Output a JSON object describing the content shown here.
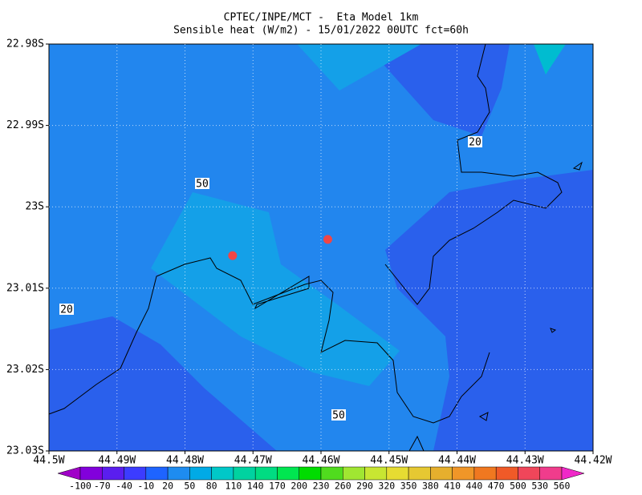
{
  "chart_data": {
    "type": "contour-map",
    "title": "CPTEC/INPE/MCT -  Eta Model 1km",
    "subtitle": "Sensible heat (W/m2) - 15/01/2022 00UTC fct=60h",
    "xlim": [
      -44.5,
      -44.42
    ],
    "xticks": [
      {
        "value": -44.5,
        "label": "44.5W"
      },
      {
        "value": -44.49,
        "label": "44.49W"
      },
      {
        "value": -44.48,
        "label": "44.48W"
      },
      {
        "value": -44.47,
        "label": "44.47W"
      },
      {
        "value": -44.46,
        "label": "44.46W"
      },
      {
        "value": -44.45,
        "label": "44.45W"
      },
      {
        "value": -44.44,
        "label": "44.44W"
      },
      {
        "value": -44.43,
        "label": "44.43W"
      },
      {
        "value": -44.42,
        "label": "44.42W"
      }
    ],
    "ylim": [
      -23.03,
      -22.98
    ],
    "yticks": [
      {
        "value": -22.98,
        "label": "22.98S"
      },
      {
        "value": -22.99,
        "label": "22.99S"
      },
      {
        "value": -23,
        "label": "23S"
      },
      {
        "value": -23.01,
        "label": "23.01S"
      },
      {
        "value": -23.02,
        "label": "23.02S"
      },
      {
        "value": -23.03,
        "label": "23.03S"
      }
    ],
    "grid": true,
    "colorbar": {
      "levels": [
        -100,
        -70,
        -40,
        -10,
        20,
        50,
        80,
        110,
        140,
        170,
        200,
        230,
        260,
        290,
        320,
        350,
        380,
        410,
        440,
        470,
        500,
        530,
        560
      ],
      "colors": [
        "#a000c8",
        "#8200dc",
        "#5a1eef",
        "#3c3cff",
        "#1e64ff",
        "#1e8cf0",
        "#00aae6",
        "#00c8c8",
        "#00d2a0",
        "#00dc82",
        "#00e650",
        "#00dc00",
        "#50dc1e",
        "#a0e632",
        "#c8e632",
        "#e6dc32",
        "#e6c832",
        "#e6af2d",
        "#f09628",
        "#f07820",
        "#f05a28",
        "#f0465a",
        "#f03c8c",
        "#f028c8"
      ]
    },
    "contour_labels": [
      50,
      20,
      20,
      50
    ],
    "points": {
      "color": "#f04646",
      "x": [
        -44.473,
        -44.459
      ],
      "y": [
        -23.006,
        -23.004
      ]
    }
  }
}
